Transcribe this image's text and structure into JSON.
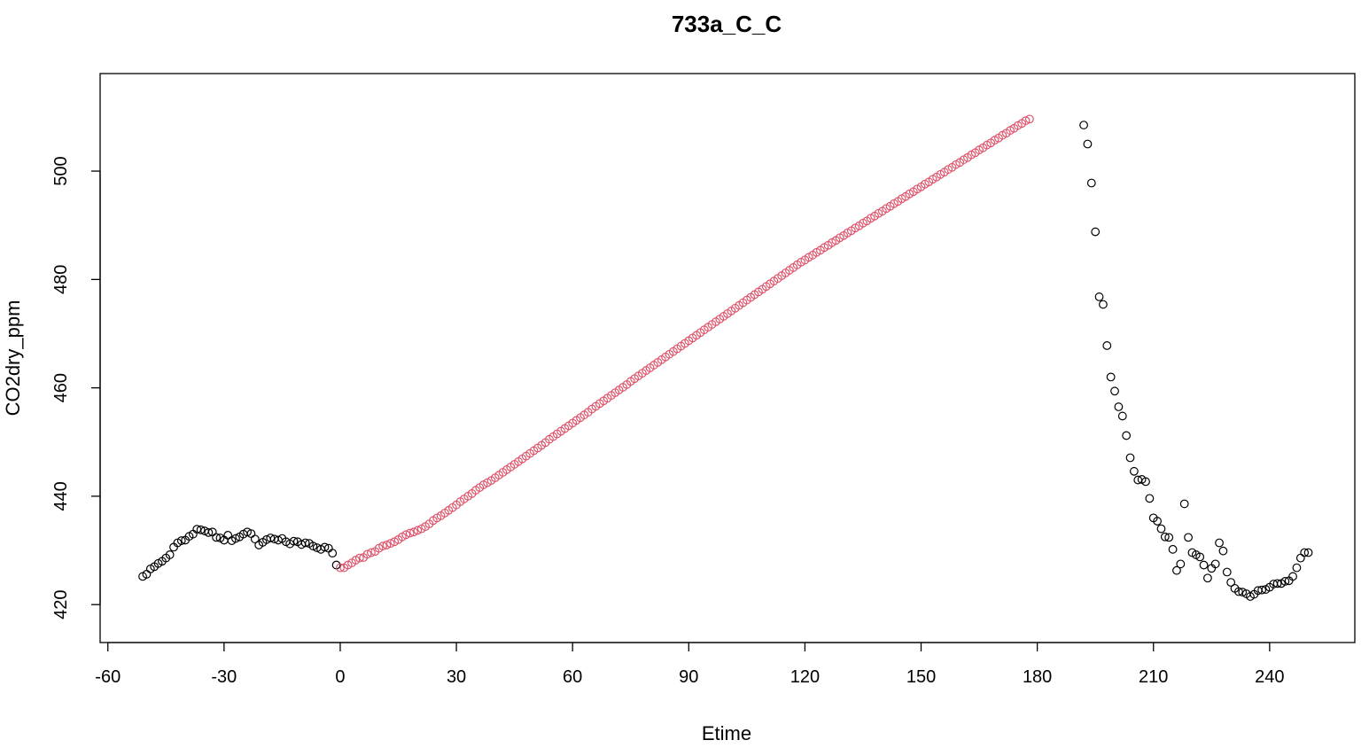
{
  "chart_data": {
    "type": "scatter",
    "title": "733a_C_C",
    "xlabel": "Etime",
    "ylabel": "CO2dry_ppm",
    "xlim": [
      -62,
      262
    ],
    "ylim": [
      413,
      518
    ],
    "xticks": [
      -60,
      -30,
      0,
      30,
      60,
      90,
      120,
      150,
      180,
      210,
      240
    ],
    "yticks": [
      420,
      440,
      460,
      480,
      500
    ],
    "grid": false,
    "legend": "none",
    "series": [
      {
        "color": "#000000",
        "marker": "open-circle",
        "points": [
          [
            -51,
            425.2
          ],
          [
            -50,
            425.6
          ],
          [
            -49,
            426.6
          ],
          [
            -48,
            427.0
          ],
          [
            -47,
            427.6
          ],
          [
            -46,
            428.0
          ],
          [
            -45,
            428.6
          ],
          [
            -44,
            429.2
          ],
          [
            -43,
            430.6
          ],
          [
            -42,
            431.4
          ],
          [
            -41,
            431.8
          ],
          [
            -40,
            431.9
          ],
          [
            -39,
            432.6
          ],
          [
            -38,
            433.0
          ],
          [
            -37,
            433.9
          ],
          [
            -36,
            433.8
          ],
          [
            -35,
            433.6
          ],
          [
            -34,
            433.3
          ],
          [
            -33,
            433.4
          ],
          [
            -32,
            432.4
          ],
          [
            -31,
            432.3
          ],
          [
            -30,
            431.9
          ],
          [
            -29,
            432.8
          ],
          [
            -28,
            431.8
          ],
          [
            -27,
            432.2
          ],
          [
            -26,
            432.5
          ],
          [
            -25,
            433.0
          ],
          [
            -24,
            433.4
          ],
          [
            -23,
            433.1
          ],
          [
            -22,
            432.1
          ],
          [
            -21,
            431.0
          ],
          [
            -20,
            431.5
          ],
          [
            -19,
            432.0
          ],
          [
            -18,
            432.3
          ],
          [
            -17,
            432.1
          ],
          [
            -16,
            431.9
          ],
          [
            -15,
            432.2
          ],
          [
            -14,
            431.6
          ],
          [
            -13,
            431.2
          ],
          [
            -12,
            431.7
          ],
          [
            -11,
            431.6
          ],
          [
            -10,
            431.1
          ],
          [
            -9,
            431.4
          ],
          [
            -8,
            431.3
          ],
          [
            -7,
            430.8
          ],
          [
            -6,
            430.5
          ],
          [
            -5,
            430.2
          ],
          [
            -4,
            430.6
          ],
          [
            -3,
            430.4
          ],
          [
            -2,
            429.5
          ],
          [
            -1,
            427.3
          ],
          [
            192,
            508.5
          ],
          [
            193,
            505.0
          ],
          [
            194,
            497.8
          ],
          [
            195,
            488.8
          ],
          [
            196,
            476.8
          ],
          [
            197,
            475.4
          ],
          [
            198,
            467.8
          ],
          [
            199,
            462.0
          ],
          [
            200,
            459.4
          ],
          [
            201,
            456.5
          ],
          [
            202,
            454.8
          ],
          [
            203,
            451.2
          ],
          [
            204,
            447.1
          ],
          [
            205,
            444.6
          ],
          [
            206,
            443.0
          ],
          [
            207,
            443.1
          ],
          [
            208,
            442.7
          ],
          [
            209,
            439.6
          ],
          [
            210,
            436.0
          ],
          [
            211,
            435.4
          ],
          [
            212,
            434.0
          ],
          [
            213,
            432.5
          ],
          [
            214,
            432.4
          ],
          [
            215,
            430.2
          ],
          [
            216,
            426.3
          ],
          [
            217,
            427.5
          ],
          [
            218,
            438.6
          ],
          [
            219,
            432.4
          ],
          [
            220,
            429.6
          ],
          [
            221,
            429.2
          ],
          [
            222,
            428.8
          ],
          [
            223,
            427.3
          ],
          [
            224,
            424.9
          ],
          [
            225,
            426.7
          ],
          [
            226,
            427.5
          ],
          [
            227,
            431.4
          ],
          [
            228,
            429.9
          ],
          [
            229,
            426.0
          ],
          [
            230,
            424.1
          ],
          [
            231,
            423.0
          ],
          [
            232,
            422.4
          ],
          [
            233,
            422.3
          ],
          [
            234,
            422.0
          ],
          [
            235,
            421.5
          ],
          [
            236,
            421.9
          ],
          [
            237,
            422.6
          ],
          [
            238,
            422.7
          ],
          [
            239,
            422.8
          ],
          [
            240,
            423.2
          ],
          [
            241,
            423.8
          ],
          [
            242,
            423.9
          ],
          [
            243,
            423.9
          ],
          [
            244,
            424.3
          ],
          [
            245,
            424.4
          ],
          [
            246,
            425.2
          ],
          [
            247,
            426.8
          ],
          [
            248,
            428.6
          ],
          [
            249,
            429.6
          ],
          [
            250,
            429.6
          ]
        ]
      },
      {
        "color": "#DF536B",
        "marker": "open-circle",
        "x_start": 0,
        "x_step": 1,
        "values": [
          426.8,
          426.8,
          427.3,
          427.7,
          428.2,
          428.6,
          428.7,
          429.3,
          429.6,
          429.8,
          430.4,
          430.8,
          431.0,
          431.3,
          431.6,
          432.0,
          432.5,
          432.9,
          433.2,
          433.4,
          433.7,
          434.0,
          434.4,
          434.9,
          435.5,
          436.0,
          436.4,
          436.9,
          437.4,
          437.9,
          438.4,
          439.0,
          439.5,
          440.0,
          440.5,
          441.1,
          441.6,
          442.1,
          442.5,
          442.9,
          443.4,
          443.9,
          444.4,
          444.9,
          445.4,
          445.9,
          446.4,
          446.9,
          447.4,
          447.9,
          448.4,
          448.9,
          449.4,
          449.9,
          450.5,
          451.0,
          451.5,
          452.0,
          452.5,
          453.0,
          453.5,
          454.0,
          454.5,
          455.0,
          455.5,
          456.1,
          456.6,
          457.1,
          457.6,
          458.1,
          458.6,
          459.1,
          459.6,
          460.1,
          460.6,
          461.2,
          461.7,
          462.2,
          462.7,
          463.2,
          463.7,
          464.2,
          464.7,
          465.2,
          465.7,
          466.2,
          466.7,
          467.2,
          467.7,
          468.2,
          468.7,
          469.2,
          469.7,
          470.2,
          470.7,
          471.2,
          471.7,
          472.2,
          472.7,
          473.2,
          473.7,
          474.2,
          474.7,
          475.2,
          475.7,
          476.2,
          476.7,
          477.2,
          477.7,
          478.2,
          478.7,
          479.2,
          479.7,
          480.2,
          480.7,
          481.2,
          481.7,
          482.2,
          482.7,
          483.2,
          483.6,
          484.1,
          484.5,
          485.0,
          485.4,
          485.9,
          486.3,
          486.8,
          487.2,
          487.7,
          488.1,
          488.6,
          489.0,
          489.5,
          489.9,
          490.4,
          490.8,
          491.3,
          491.7,
          492.2,
          492.6,
          493.1,
          493.5,
          494.0,
          494.4,
          494.9,
          495.3,
          495.8,
          496.2,
          496.7,
          497.1,
          497.6,
          498.0,
          498.5,
          498.9,
          499.4,
          499.8,
          500.3,
          500.7,
          501.2,
          501.6,
          502.1,
          502.5,
          503.0,
          503.4,
          503.9,
          504.3,
          504.8,
          505.2,
          505.7,
          506.1,
          506.6,
          507.0,
          507.5,
          507.9,
          508.4,
          508.8,
          509.3,
          509.6
        ]
      }
    ]
  }
}
